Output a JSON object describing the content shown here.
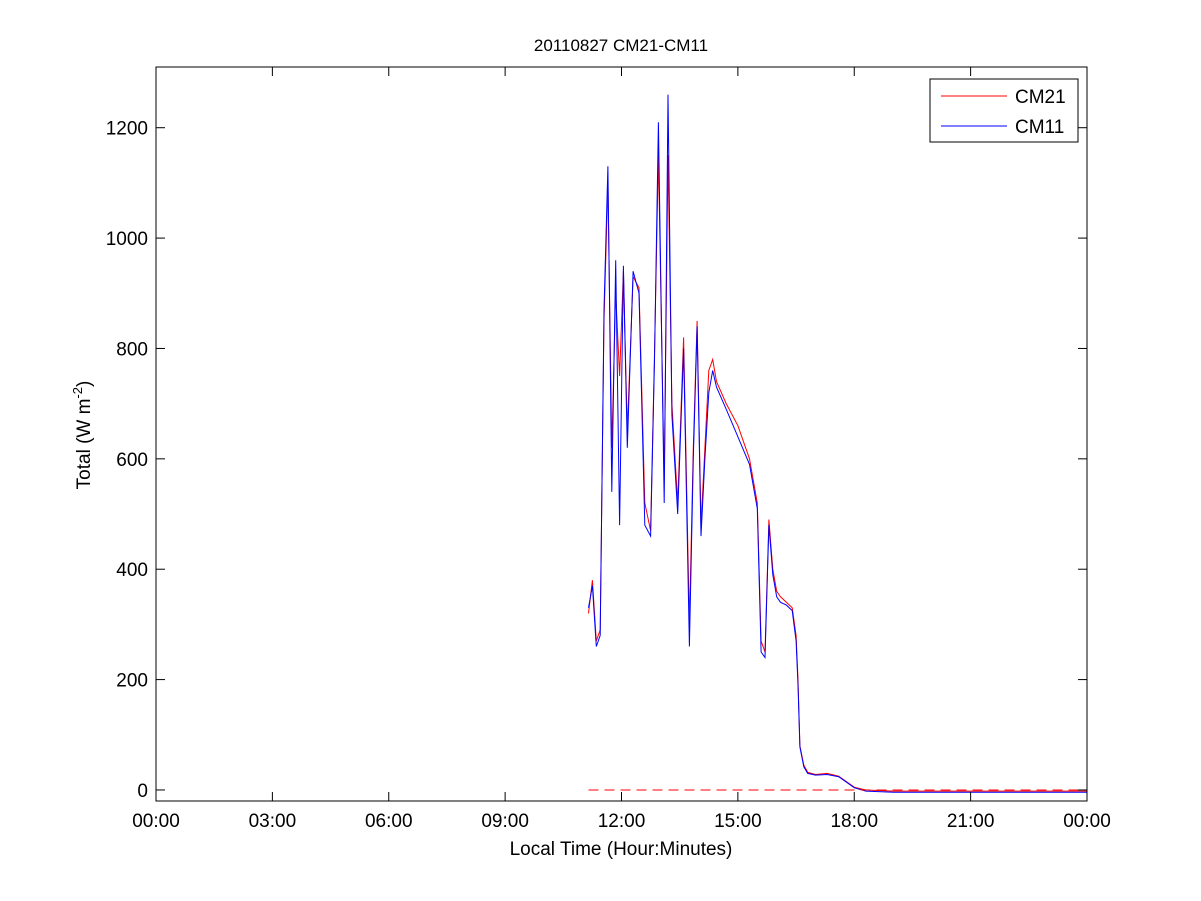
{
  "chart_data": {
    "type": "line",
    "title": "20110827 CM21-CM11",
    "xlabel": "Local Time (Hour:Minutes)",
    "ylabel": {
      "main": "Total (W m",
      "sup": "-2",
      "close": ")"
    },
    "x_unit": "hours",
    "xlim": [
      0,
      24
    ],
    "ylim": [
      -20,
      1310
    ],
    "xticks": [
      {
        "value": 0,
        "label": "00:00"
      },
      {
        "value": 3,
        "label": "03:00"
      },
      {
        "value": 6,
        "label": "06:00"
      },
      {
        "value": 9,
        "label": "09:00"
      },
      {
        "value": 12,
        "label": "12:00"
      },
      {
        "value": 15,
        "label": "15:00"
      },
      {
        "value": 18,
        "label": "18:00"
      },
      {
        "value": 21,
        "label": "21:00"
      },
      {
        "value": 24,
        "label": "00:00"
      }
    ],
    "yticks": [
      {
        "value": 0,
        "label": "0"
      },
      {
        "value": 200,
        "label": "200"
      },
      {
        "value": 400,
        "label": "400"
      },
      {
        "value": 600,
        "label": "600"
      },
      {
        "value": 800,
        "label": "800"
      },
      {
        "value": 1000,
        "label": "1000"
      },
      {
        "value": 1200,
        "label": "1200"
      }
    ],
    "grid": false,
    "legend": "top-right",
    "series": [
      {
        "name": "CM21",
        "color": "#ff0000",
        "x": [
          11.15,
          11.25,
          11.35,
          11.45,
          11.55,
          11.65,
          11.75,
          11.85,
          11.95,
          12.05,
          12.15,
          12.3,
          12.45,
          12.6,
          12.75,
          12.85,
          12.95,
          13.1,
          13.2,
          13.3,
          13.45,
          13.6,
          13.75,
          13.85,
          13.95,
          14.05,
          14.15,
          14.25,
          14.35,
          14.45,
          14.7,
          15.0,
          15.3,
          15.5,
          15.6,
          15.7,
          15.8,
          15.9,
          16.0,
          16.1,
          16.25,
          16.4,
          16.5,
          16.55,
          16.6,
          16.7,
          16.8,
          17.0,
          17.3,
          17.6,
          17.8,
          18.0,
          18.3,
          19.0,
          20.0,
          21.0,
          22.0,
          23.0,
          24.0
        ],
        "y": [
          320,
          380,
          270,
          290,
          850,
          1100,
          620,
          900,
          750,
          940,
          650,
          930,
          910,
          520,
          470,
          790,
          1150,
          560,
          1150,
          700,
          520,
          820,
          300,
          620,
          850,
          480,
          620,
          760,
          780,
          740,
          700,
          660,
          600,
          520,
          270,
          250,
          490,
          400,
          360,
          350,
          340,
          330,
          280,
          200,
          80,
          45,
          32,
          28,
          30,
          25,
          15,
          5,
          0,
          -2,
          -2,
          -2,
          -2,
          -2,
          -2
        ]
      },
      {
        "name": "CM11",
        "color": "#0000ff",
        "x": [
          11.15,
          11.25,
          11.35,
          11.45,
          11.55,
          11.65,
          11.75,
          11.85,
          11.95,
          12.05,
          12.15,
          12.3,
          12.45,
          12.6,
          12.75,
          12.85,
          12.95,
          13.1,
          13.2,
          13.3,
          13.45,
          13.6,
          13.75,
          13.85,
          13.95,
          14.05,
          14.15,
          14.25,
          14.35,
          14.45,
          14.7,
          15.0,
          15.3,
          15.5,
          15.6,
          15.7,
          15.8,
          15.9,
          16.0,
          16.1,
          16.25,
          16.4,
          16.5,
          16.55,
          16.6,
          16.7,
          16.8,
          17.0,
          17.3,
          17.6,
          17.8,
          18.0,
          18.3,
          19.0,
          20.0,
          21.0,
          22.0,
          23.0,
          24.0
        ],
        "y": [
          330,
          370,
          260,
          280,
          870,
          1130,
          540,
          960,
          480,
          950,
          620,
          940,
          900,
          480,
          460,
          780,
          1210,
          520,
          1260,
          680,
          500,
          800,
          260,
          600,
          840,
          460,
          600,
          720,
          760,
          730,
          690,
          640,
          590,
          510,
          250,
          240,
          480,
          390,
          350,
          340,
          335,
          325,
          270,
          190,
          78,
          42,
          30,
          27,
          28,
          24,
          14,
          4,
          -2,
          -4,
          -4,
          -4,
          -4,
          -4,
          -4
        ]
      },
      {
        "name": "",
        "color": "#ff0000",
        "style": "dashed",
        "x": [
          11.15,
          24.0
        ],
        "y": [
          0,
          0
        ]
      }
    ]
  }
}
